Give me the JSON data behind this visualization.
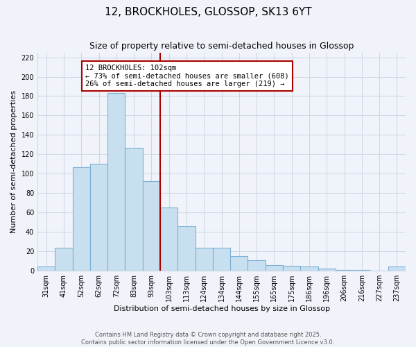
{
  "title": "12, BROCKHOLES, GLOSSOP, SK13 6YT",
  "subtitle": "Size of property relative to semi-detached houses in Glossop",
  "xlabel": "Distribution of semi-detached houses by size in Glossop",
  "ylabel": "Number of semi-detached properties",
  "categories": [
    "31sqm",
    "41sqm",
    "52sqm",
    "62sqm",
    "72sqm",
    "83sqm",
    "93sqm",
    "103sqm",
    "113sqm",
    "124sqm",
    "134sqm",
    "144sqm",
    "155sqm",
    "165sqm",
    "175sqm",
    "186sqm",
    "196sqm",
    "206sqm",
    "216sqm",
    "227sqm",
    "237sqm"
  ],
  "values": [
    4,
    24,
    107,
    110,
    183,
    127,
    92,
    65,
    46,
    24,
    24,
    15,
    11,
    6,
    5,
    4,
    2,
    1,
    1,
    0,
    4
  ],
  "bar_color": "#c8dff0",
  "bar_edge_color": "#7ab0d4",
  "vline_index": 7,
  "vline_color": "#aa0000",
  "annotation_line1": "12 BROCKHOLES: 102sqm",
  "annotation_line2": "← 73% of semi-detached houses are smaller (608)",
  "annotation_line3": "26% of semi-detached houses are larger (219) →",
  "annotation_box_color": "#ffffff",
  "annotation_box_edge": "#aa0000",
  "ylim": [
    0,
    225
  ],
  "yticks": [
    0,
    20,
    40,
    60,
    80,
    100,
    120,
    140,
    160,
    180,
    200,
    220
  ],
  "footer1": "Contains HM Land Registry data © Crown copyright and database right 2025.",
  "footer2": "Contains public sector information licensed under the Open Government Licence v3.0.",
  "bg_color": "#f0f4fa",
  "plot_bg_color": "#f0f4fa",
  "grid_color": "#d0d8e8",
  "title_fontsize": 11,
  "subtitle_fontsize": 9,
  "tick_fontsize": 7,
  "label_fontsize": 8,
  "footer_fontsize": 6
}
